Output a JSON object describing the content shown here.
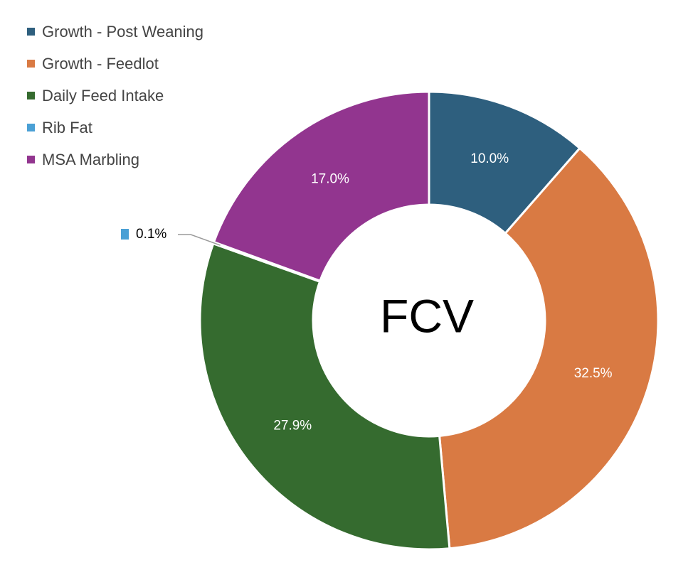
{
  "chart_data": {
    "type": "pie",
    "center_label": "FCV",
    "categories": [
      "Growth - Post Weaning",
      "Growth - Feedlot",
      "Daily Feed Intake",
      "Rib Fat",
      "MSA Marbling"
    ],
    "values": [
      10.0,
      32.5,
      27.9,
      0.1,
      17.0
    ],
    "data_labels": [
      "10.0%",
      "32.5%",
      "27.9%",
      "0.1%",
      "17.0%"
    ],
    "colors": [
      "#2E5F7E",
      "#D97A43",
      "#356B2F",
      "#4AA0D5",
      "#92358F"
    ],
    "legend_position": "top-left"
  }
}
